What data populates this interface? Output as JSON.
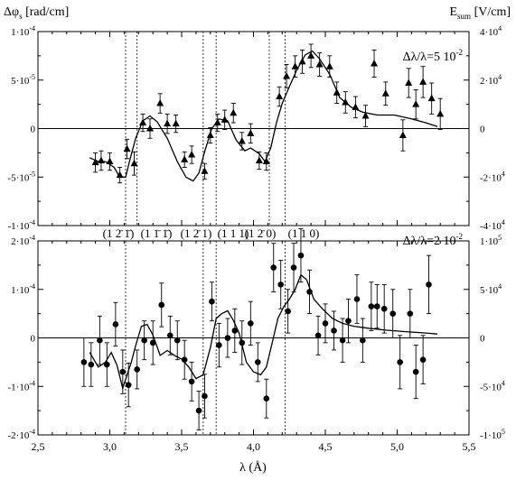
{
  "figure": {
    "left_axis_title": "Δφ",
    "left_axis_title_sub": "s",
    "left_axis_title_unit": " [rad/cm]",
    "right_axis_title": "E",
    "right_axis_title_sub": "sum",
    "right_axis_title_unit": " [V/cm]",
    "x_axis_title": "λ (Å)",
    "x_ticks": [
      "2,5",
      "3,0",
      "3,5",
      "4,0",
      "4,5",
      "5,0",
      "5,5"
    ],
    "reflection_labels": [
      "(1 2̄ 1̄)",
      "(1 1̄ 1̄)",
      "(1 2̄ 1)",
      "(1 1 1)",
      "(1 2̄ 0)",
      "(1 1 0)"
    ]
  },
  "chart_data": [
    {
      "type": "scatter",
      "panel": "top",
      "annotation": "Δλ/λ=5 10",
      "annotation_exp": "-2",
      "marker": "triangle",
      "xlim": [
        2.5,
        5.5
      ],
      "ylim_left": [
        -0.0001,
        0.0001
      ],
      "ylim_right": [
        -50000,
        50000
      ],
      "left_ticks": [
        "1·10",
        "5·10",
        "0",
        "-5·10",
        "-1·10"
      ],
      "left_tick_exps": [
        "-4",
        "-5",
        "",
        "-5",
        "-4"
      ],
      "right_ticks": [
        "4·10",
        "2·10",
        "0",
        "-2·10",
        "-4·10"
      ],
      "right_tick_exps": [
        "4",
        "4",
        "",
        "4",
        "4"
      ],
      "vlines": [
        3.11,
        3.19,
        3.65,
        3.74,
        4.11,
        4.22
      ],
      "points": [
        {
          "x": 2.9,
          "y": -3.5e-05,
          "err": 1e-05
        },
        {
          "x": 2.94,
          "y": -3.3e-05,
          "err": 1e-05
        },
        {
          "x": 3.0,
          "y": -3.4e-05,
          "err": 9e-06
        },
        {
          "x": 3.07,
          "y": -4.8e-05,
          "err": 8e-06
        },
        {
          "x": 3.12,
          "y": -2.1e-05,
          "err": 1e-05
        },
        {
          "x": 3.17,
          "y": -3.6e-05,
          "err": 1.2e-05
        },
        {
          "x": 3.23,
          "y": 6e-06,
          "err": 9e-06
        },
        {
          "x": 3.28,
          "y": 0.0,
          "err": 1e-05
        },
        {
          "x": 3.35,
          "y": 2.6e-05,
          "err": 1e-05
        },
        {
          "x": 3.4,
          "y": 5e-06,
          "err": 1e-05
        },
        {
          "x": 3.46,
          "y": 5e-06,
          "err": 9e-06
        },
        {
          "x": 3.52,
          "y": -3.2e-05,
          "err": 8e-06
        },
        {
          "x": 3.57,
          "y": -2.7e-05,
          "err": 9e-06
        },
        {
          "x": 3.66,
          "y": -4.4e-05,
          "err": 8e-06
        },
        {
          "x": 3.7,
          "y": -7e-06,
          "err": 8e-06
        },
        {
          "x": 3.75,
          "y": 6e-06,
          "err": 9e-06
        },
        {
          "x": 3.8,
          "y": 9e-06,
          "err": 1e-05
        },
        {
          "x": 3.86,
          "y": 1.6e-05,
          "err": 1e-05
        },
        {
          "x": 3.92,
          "y": -1.3e-05,
          "err": 9e-06
        },
        {
          "x": 3.98,
          "y": -5e-06,
          "err": 1e-05
        },
        {
          "x": 4.04,
          "y": -3.3e-05,
          "err": 9e-06
        },
        {
          "x": 4.09,
          "y": -3.4e-05,
          "err": 9e-06
        },
        {
          "x": 4.18,
          "y": 3.3e-05,
          "err": 1e-05
        },
        {
          "x": 4.23,
          "y": 5.4e-05,
          "err": 1.2e-05
        },
        {
          "x": 4.29,
          "y": 6.4e-05,
          "err": 1.1e-05
        },
        {
          "x": 4.34,
          "y": 6.9e-05,
          "err": 1.2e-05
        },
        {
          "x": 4.4,
          "y": 7.5e-05,
          "err": 1.2e-05
        },
        {
          "x": 4.46,
          "y": 6.6e-05,
          "err": 1.2e-05
        },
        {
          "x": 4.53,
          "y": 6.4e-05,
          "err": 1.1e-05
        },
        {
          "x": 4.58,
          "y": 3.7e-05,
          "err": 1.1e-05
        },
        {
          "x": 4.64,
          "y": 2.7e-05,
          "err": 1.1e-05
        },
        {
          "x": 4.71,
          "y": 2.2e-05,
          "err": 1.1e-05
        },
        {
          "x": 4.78,
          "y": 1.3e-05,
          "err": 1.1e-05
        },
        {
          "x": 4.84,
          "y": 6.7e-05,
          "err": 1.4e-05
        },
        {
          "x": 4.92,
          "y": 3.6e-05,
          "err": 1.2e-05
        },
        {
          "x": 5.04,
          "y": -7e-06,
          "err": 1.6e-05
        },
        {
          "x": 5.08,
          "y": 4.7e-05,
          "err": 1.5e-05
        },
        {
          "x": 5.13,
          "y": 2.5e-05,
          "err": 1.5e-05
        },
        {
          "x": 5.18,
          "y": 4.8e-05,
          "err": 1.6e-05
        },
        {
          "x": 5.24,
          "y": 3.1e-05,
          "err": 1.6e-05
        },
        {
          "x": 5.3,
          "y": 1.5e-05,
          "err": 1.6e-05
        }
      ],
      "curve_axis": "right",
      "curve": [
        [
          2.86,
          -15000
        ],
        [
          2.92,
          -17000
        ],
        [
          2.97,
          -17000
        ],
        [
          3.03,
          -20000
        ],
        [
          3.07,
          -25000
        ],
        [
          3.11,
          -25000
        ],
        [
          3.14,
          -16000
        ],
        [
          3.18,
          -5000
        ],
        [
          3.23,
          4000
        ],
        [
          3.28,
          6500
        ],
        [
          3.33,
          3500
        ],
        [
          3.4,
          -5000
        ],
        [
          3.47,
          -17000
        ],
        [
          3.53,
          -25000
        ],
        [
          3.58,
          -27000
        ],
        [
          3.62,
          -23000
        ],
        [
          3.66,
          -12000
        ],
        [
          3.71,
          0
        ],
        [
          3.76,
          5000
        ],
        [
          3.82,
          4000
        ],
        [
          3.88,
          -6000
        ],
        [
          3.94,
          -11500
        ],
        [
          3.98,
          -10000
        ],
        [
          4.04,
          -13000
        ],
        [
          4.08,
          -17000
        ],
        [
          4.12,
          -10000
        ],
        [
          4.16,
          3000
        ],
        [
          4.2,
          13000
        ],
        [
          4.24,
          20000
        ],
        [
          4.3,
          30000
        ],
        [
          4.36,
          38000
        ],
        [
          4.41,
          40000
        ],
        [
          4.46,
          36000
        ],
        [
          4.53,
          28000
        ],
        [
          4.6,
          16000
        ],
        [
          4.68,
          11000
        ],
        [
          4.76,
          8500
        ],
        [
          4.86,
          7000
        ],
        [
          4.98,
          7000
        ],
        [
          5.1,
          5000
        ],
        [
          5.2,
          3000
        ],
        [
          5.28,
          1000
        ]
      ]
    },
    {
      "type": "scatter",
      "panel": "bottom",
      "annotation": "Δλ/λ=2 10",
      "annotation_exp": "-2",
      "marker": "circle",
      "xlim": [
        2.5,
        5.5
      ],
      "ylim_left": [
        -0.0002,
        0.0002
      ],
      "ylim_right": [
        -100000,
        100000
      ],
      "left_ticks": [
        "2·10",
        "1·10",
        "0",
        "-1·10",
        "-2·10"
      ],
      "left_tick_exps": [
        "-4",
        "-4",
        "",
        "-4",
        "-4"
      ],
      "right_ticks": [
        "1·10",
        "5·10",
        "0",
        "-5·10",
        "-1·10"
      ],
      "right_tick_exps": [
        "5",
        "4",
        "",
        "4",
        "5"
      ],
      "vlines": [
        3.11,
        3.65,
        3.74,
        4.22
      ],
      "points": [
        {
          "x": 2.82,
          "y": -5e-05,
          "err": 5e-05
        },
        {
          "x": 2.87,
          "y": -5.5e-05,
          "err": 4.5e-05
        },
        {
          "x": 2.93,
          "y": -5e-06,
          "err": 5e-05
        },
        {
          "x": 2.98,
          "y": -5.5e-05,
          "err": 4.5e-05
        },
        {
          "x": 3.04,
          "y": 2.8e-05,
          "err": 4.5e-05
        },
        {
          "x": 3.09,
          "y": -7e-05,
          "err": 4.5e-05
        },
        {
          "x": 3.13,
          "y": -9.7e-05,
          "err": 4.5e-05
        },
        {
          "x": 3.19,
          "y": -6.5e-05,
          "err": 4e-05
        },
        {
          "x": 3.24,
          "y": -5e-06,
          "err": 4e-05
        },
        {
          "x": 3.3,
          "y": -1e-05,
          "err": 4.5e-05
        },
        {
          "x": 3.36,
          "y": 6.8e-05,
          "err": 4.5e-05
        },
        {
          "x": 3.42,
          "y": 5e-06,
          "err": 4e-05
        },
        {
          "x": 3.47,
          "y": -5e-06,
          "err": 4e-05
        },
        {
          "x": 3.52,
          "y": -4.5e-05,
          "err": 4e-05
        },
        {
          "x": 3.57,
          "y": -9e-05,
          "err": 4e-05
        },
        {
          "x": 3.62,
          "y": -0.00015,
          "err": 4e-05
        },
        {
          "x": 3.66,
          "y": -0.00012,
          "err": 4.5e-05
        },
        {
          "x": 3.71,
          "y": 7.5e-05,
          "err": 4e-05
        },
        {
          "x": 3.76,
          "y": -1.5e-05,
          "err": 4.5e-05
        },
        {
          "x": 3.82,
          "y": 0.0,
          "err": 4e-05
        },
        {
          "x": 3.87,
          "y": 1.5e-05,
          "err": 4.5e-05
        },
        {
          "x": 3.92,
          "y": -1e-05,
          "err": 4.5e-05
        },
        {
          "x": 3.98,
          "y": 3e-05,
          "err": 4.5e-05
        },
        {
          "x": 4.03,
          "y": -5e-05,
          "err": 4e-05
        },
        {
          "x": 4.09,
          "y": -0.000125,
          "err": 4e-05
        },
        {
          "x": 4.14,
          "y": 0.000145,
          "err": 5e-05
        },
        {
          "x": 4.19,
          "y": 0.00011,
          "err": 5e-05
        },
        {
          "x": 4.24,
          "y": 5.5e-05,
          "err": 4.5e-05
        },
        {
          "x": 4.28,
          "y": 0.000145,
          "err": 5e-05
        },
        {
          "x": 4.33,
          "y": 0.00017,
          "err": 5.5e-05
        },
        {
          "x": 4.39,
          "y": 9.5e-05,
          "err": 4.5e-05
        },
        {
          "x": 4.45,
          "y": 5e-06,
          "err": 4e-05
        },
        {
          "x": 4.5,
          "y": 3e-05,
          "err": 4e-05
        },
        {
          "x": 4.56,
          "y": 1.5e-05,
          "err": 4e-05
        },
        {
          "x": 4.62,
          "y": -5e-06,
          "err": 4.5e-05
        },
        {
          "x": 4.66,
          "y": 3.5e-05,
          "err": 4.5e-05
        },
        {
          "x": 4.72,
          "y": 8e-05,
          "err": 5e-05
        },
        {
          "x": 4.76,
          "y": -5e-06,
          "err": 4.5e-05
        },
        {
          "x": 4.82,
          "y": 6.5e-05,
          "err": 5e-05
        },
        {
          "x": 4.86,
          "y": 6.5e-05,
          "err": 4.5e-05
        },
        {
          "x": 4.91,
          "y": 6e-05,
          "err": 5e-05
        },
        {
          "x": 4.97,
          "y": 5e-05,
          "err": 5e-05
        },
        {
          "x": 5.02,
          "y": -5e-05,
          "err": 5.5e-05
        },
        {
          "x": 5.09,
          "y": 5e-05,
          "err": 5e-05
        },
        {
          "x": 5.13,
          "y": -7e-05,
          "err": 5.5e-05
        },
        {
          "x": 5.18,
          "y": -4.5e-05,
          "err": 5e-05
        },
        {
          "x": 5.22,
          "y": 0.00011,
          "err": 6e-05
        }
      ],
      "curve_axis": "right",
      "curve": [
        [
          2.86,
          -15000
        ],
        [
          2.92,
          -30000
        ],
        [
          2.97,
          -25000
        ],
        [
          3.01,
          -15000
        ],
        [
          3.05,
          -28000
        ],
        [
          3.09,
          -52000
        ],
        [
          3.12,
          -38000
        ],
        [
          3.15,
          -25000
        ],
        [
          3.18,
          -8000
        ],
        [
          3.22,
          12000
        ],
        [
          3.26,
          14000
        ],
        [
          3.3,
          3000
        ],
        [
          3.35,
          -18000
        ],
        [
          3.4,
          -13000
        ],
        [
          3.45,
          -18000
        ],
        [
          3.5,
          -22000
        ],
        [
          3.55,
          -30000
        ],
        [
          3.6,
          -42000
        ],
        [
          3.65,
          -38000
        ],
        [
          3.7,
          -10000
        ],
        [
          3.74,
          20000
        ],
        [
          3.78,
          25000
        ],
        [
          3.82,
          28000
        ],
        [
          3.86,
          18000
        ],
        [
          3.9,
          5000
        ],
        [
          3.95,
          -25000
        ],
        [
          4.0,
          -35000
        ],
        [
          4.05,
          -38000
        ],
        [
          4.09,
          -30000
        ],
        [
          4.13,
          -5000
        ],
        [
          4.17,
          20000
        ],
        [
          4.21,
          32000
        ],
        [
          4.25,
          40000
        ],
        [
          4.29,
          50000
        ],
        [
          4.33,
          65000
        ],
        [
          4.37,
          60000
        ],
        [
          4.42,
          40000
        ],
        [
          4.48,
          30000
        ],
        [
          4.55,
          20000
        ],
        [
          4.62,
          15000
        ],
        [
          4.7,
          12000
        ],
        [
          4.8,
          10000
        ],
        [
          4.92,
          8000
        ],
        [
          5.05,
          6500
        ],
        [
          5.2,
          5000
        ],
        [
          5.28,
          4000
        ]
      ]
    }
  ]
}
